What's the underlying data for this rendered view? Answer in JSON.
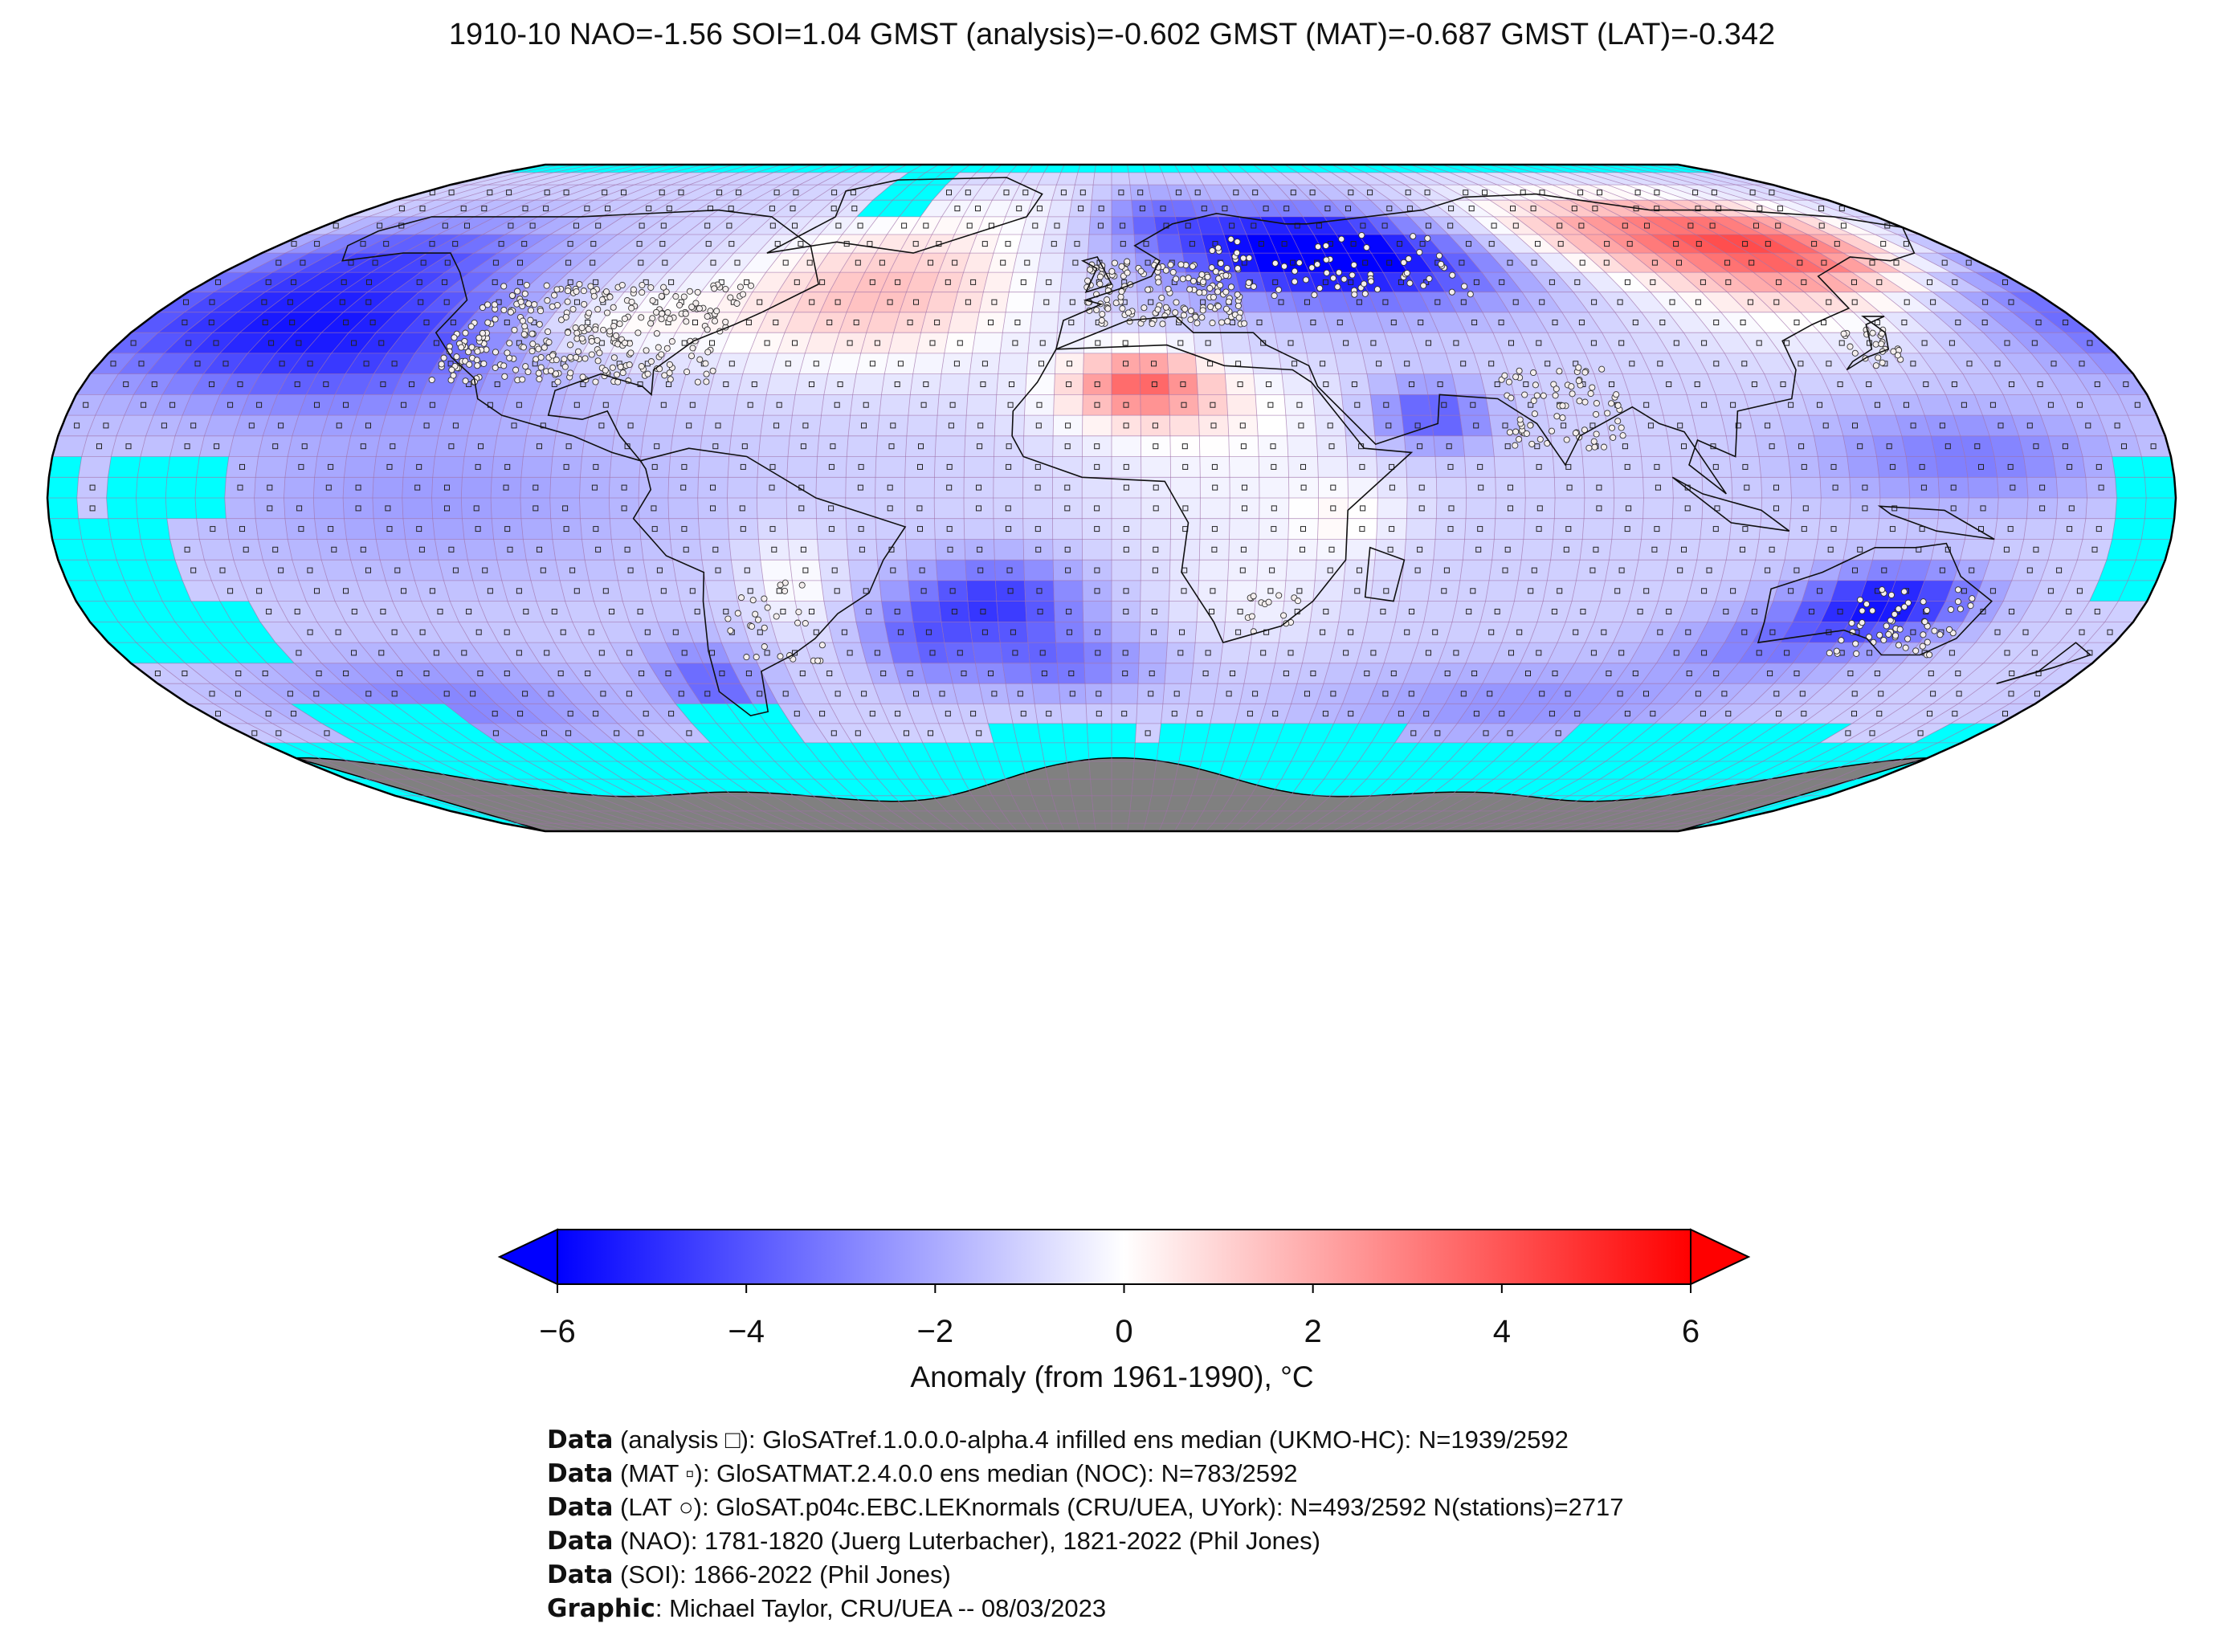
{
  "title": "1910-10 NAO=-1.56 SOI=1.04 GMST (analysis)=-0.602 GMST (MAT)=-0.687 GMST (LAT)=-0.342",
  "colorbar": {
    "label": "Anomaly (from 1961-1990), °C",
    "min": -6,
    "max": 6,
    "ticks": [
      "−6",
      "−4",
      "−2",
      "0",
      "2",
      "4",
      "6"
    ],
    "colors": {
      "cold": "#0000ff",
      "neutral": "#ffffff",
      "warm": "#ff0000"
    }
  },
  "map": {
    "projection": "Robinson",
    "colors": {
      "missing": "#00ffff",
      "antarctica": "#808080",
      "grid": "#a070a8"
    }
  },
  "credits": [
    {
      "bold": "Data",
      "text": " (analysis □): GloSATref.1.0.0.0-alpha.4 infilled ens median (UKMO-HC): N=1939/2592"
    },
    {
      "bold": "Data",
      "text": " (MAT ▫): GloSATMAT.2.4.0.0 ens median (NOC): N=783/2592"
    },
    {
      "bold": "Data",
      "text": " (LAT ○): GloSAT.p04c.EBC.LEKnormals (CRU/UEA, UYork): N=493/2592 N(stations)=2717"
    },
    {
      "bold": "Data",
      "text": " (NAO): 1781-1820 (Juerg Luterbacher), 1821-2022 (Phil Jones)"
    },
    {
      "bold": "Data",
      "text": " (SOI): 1866-2022 (Phil Jones)"
    },
    {
      "bold": "Graphic",
      "text": ": Michael Taylor, CRU/UEA -- 08/03/2023"
    }
  ]
}
